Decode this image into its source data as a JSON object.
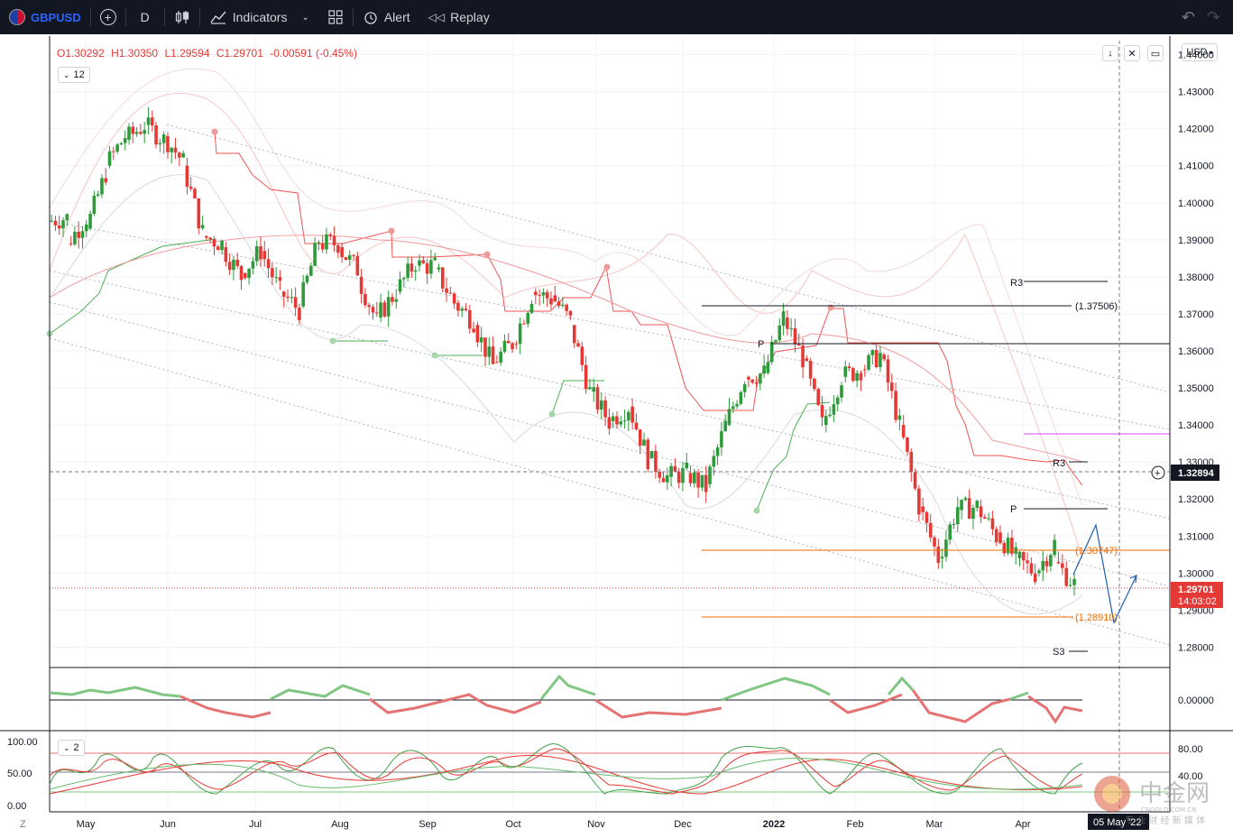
{
  "toolbar": {
    "symbol": "GBPUSD",
    "interval": "D",
    "indicators_label": "Indicators",
    "alert_label": "Alert",
    "replay_label": "Replay"
  },
  "legend": {
    "open": "O1.30292",
    "high": "H1.30350",
    "low": "L1.29594",
    "close": "C1.29701",
    "change": "-0.00591 (-0.45%)",
    "indicator_count": "12",
    "osc_count": "2"
  },
  "currency_button": "USD",
  "price_axis": {
    "ticks": [
      "1.44000",
      "1.43000",
      "1.42000",
      "1.41000",
      "1.40000",
      "1.39000",
      "1.38000",
      "1.37000",
      "1.36000",
      "1.35000",
      "1.34000",
      "1.33000",
      "1.32000",
      "1.31000",
      "1.30000",
      "1.29000",
      "1.28000"
    ],
    "crosshair_price": "1.32894",
    "last_price": "1.29701",
    "countdown": "14:03:02"
  },
  "osc1_axis": {
    "ticks": [
      "0.00000"
    ]
  },
  "osc2_axis_left": {
    "ticks": [
      "100.00",
      "50.00",
      "0.00"
    ]
  },
  "osc2_axis_right": {
    "ticks": [
      "80.00",
      "40.00"
    ]
  },
  "time_axis": {
    "months": [
      "May",
      "Jun",
      "Jul",
      "Aug",
      "Sep",
      "Oct",
      "Nov",
      "Dec",
      "2022",
      "Feb",
      "Mar",
      "Apr"
    ],
    "crosshair_date": "05 May '22",
    "reset_label": "Z"
  },
  "annotations": {
    "r3_a": "R3",
    "r3_b": "R3",
    "p_a": "P",
    "p_b": "P",
    "s3": "S3",
    "level_high": "(1.37506)",
    "level_mid": "(1.30747)",
    "level_low": "(1.28910)"
  },
  "watermark": {
    "cn": "中金网",
    "site": "CNGOLD.COM.CN",
    "slogan": "专 业 财 经 新 媒 体"
  },
  "colors": {
    "up": "#26a69a",
    "up_candle": "#2e9b3a",
    "down": "#e53935",
    "toolbar_bg": "#131722",
    "accent": "#2962ff"
  },
  "chart_data": {
    "type": "candlestick",
    "title": "GBPUSD",
    "interval": "D",
    "ylim": [
      1.275,
      1.445
    ],
    "x_start": "2021-04-26",
    "x_end": "2022-05-06",
    "points": [
      [
        "2021-04-26",
        1.395,
        1.396
      ],
      [
        "2021-05-03",
        1.389,
        1.396
      ],
      [
        "2021-05-10",
        1.393,
        1.408
      ],
      [
        "2021-05-17",
        1.41,
        1.418
      ],
      [
        "2021-05-24",
        1.417,
        1.421
      ],
      [
        "2021-05-31",
        1.421,
        1.417
      ],
      [
        "2021-06-07",
        1.418,
        1.411
      ],
      [
        "2021-06-14",
        1.41,
        1.392
      ],
      [
        "2021-06-21",
        1.391,
        1.389
      ],
      [
        "2021-06-28",
        1.388,
        1.38
      ],
      [
        "2021-07-05",
        1.381,
        1.387
      ],
      [
        "2021-07-12",
        1.387,
        1.376
      ],
      [
        "2021-07-19",
        1.376,
        1.371
      ],
      [
        "2021-07-26",
        1.372,
        1.39
      ],
      [
        "2021-08-02",
        1.389,
        1.389
      ],
      [
        "2021-08-09",
        1.388,
        1.382
      ],
      [
        "2021-08-16",
        1.38,
        1.368
      ],
      [
        "2021-08-23",
        1.369,
        1.376
      ],
      [
        "2021-08-30",
        1.376,
        1.384
      ],
      [
        "2021-09-06",
        1.383,
        1.383
      ],
      [
        "2021-09-13",
        1.382,
        1.373
      ],
      [
        "2021-09-20",
        1.373,
        1.368
      ],
      [
        "2021-09-27",
        1.367,
        1.356
      ],
      [
        "2021-10-04",
        1.357,
        1.362
      ],
      [
        "2021-10-11",
        1.362,
        1.375
      ],
      [
        "2021-10-18",
        1.376,
        1.374
      ],
      [
        "2021-10-25",
        1.375,
        1.368
      ],
      [
        "2021-11-01",
        1.367,
        1.349
      ],
      [
        "2021-11-08",
        1.349,
        1.341
      ],
      [
        "2021-11-15",
        1.341,
        1.345
      ],
      [
        "2021-11-22",
        1.345,
        1.331
      ],
      [
        "2021-11-29",
        1.331,
        1.326
      ],
      [
        "2021-12-06",
        1.326,
        1.327
      ],
      [
        "2021-12-13",
        1.327,
        1.323
      ],
      [
        "2021-12-20",
        1.324,
        1.34
      ],
      [
        "2021-12-27",
        1.34,
        1.353
      ],
      [
        "2022-01-03",
        1.353,
        1.354
      ],
      [
        "2022-01-10",
        1.354,
        1.369
      ],
      [
        "2022-01-17",
        1.369,
        1.358
      ],
      [
        "2022-01-24",
        1.358,
        1.34
      ],
      [
        "2022-01-31",
        1.34,
        1.353
      ],
      [
        "2022-02-07",
        1.353,
        1.355
      ],
      [
        "2022-02-14",
        1.355,
        1.359
      ],
      [
        "2022-02-21",
        1.359,
        1.34
      ],
      [
        "2022-02-28",
        1.34,
        1.318
      ],
      [
        "2022-03-07",
        1.318,
        1.304
      ],
      [
        "2022-03-14",
        1.304,
        1.318
      ],
      [
        "2022-03-21",
        1.317,
        1.318
      ],
      [
        "2022-03-28",
        1.318,
        1.31
      ],
      [
        "2022-04-04",
        1.311,
        1.304
      ],
      [
        "2022-04-11",
        1.304,
        1.3
      ],
      [
        "2022-04-18",
        1.3,
        1.308
      ],
      [
        "2022-04-25",
        1.303,
        1.297
      ]
    ],
    "horizontal_levels": [
      1.37506,
      1.30747,
      1.2891,
      1.32894,
      1.29701
    ],
    "projection": [
      [
        1.297,
        1.314
      ],
      [
        1.314,
        1.288
      ],
      [
        1.288,
        1.3
      ]
    ]
  }
}
